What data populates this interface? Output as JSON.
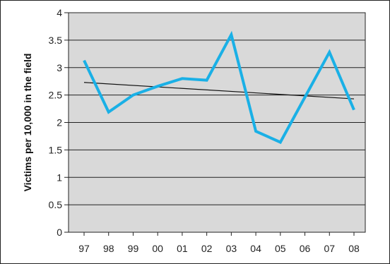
{
  "chart_data": {
    "type": "line",
    "title": "",
    "xlabel": "",
    "ylabel": "Victims per 10,000 in the field",
    "categories": [
      "97",
      "98",
      "99",
      "00",
      "01",
      "02",
      "03",
      "04",
      "05",
      "06",
      "07",
      "08"
    ],
    "series": [
      {
        "values": [
          3.13,
          2.19,
          2.5,
          2.66,
          2.8,
          2.77,
          3.6,
          1.84,
          1.64,
          2.46,
          3.28,
          2.23
        ],
        "color": "#1ab0e6"
      }
    ],
    "trendline": {
      "start": 2.73,
      "end": 2.43,
      "color": "#111111"
    },
    "ylim": [
      0,
      4
    ],
    "yticks": [
      "0",
      "0.5",
      "1",
      "1.5",
      "2",
      "2.5",
      "3",
      "3.5",
      "4"
    ],
    "grid": true,
    "plot_background": "#d9d9d9"
  }
}
